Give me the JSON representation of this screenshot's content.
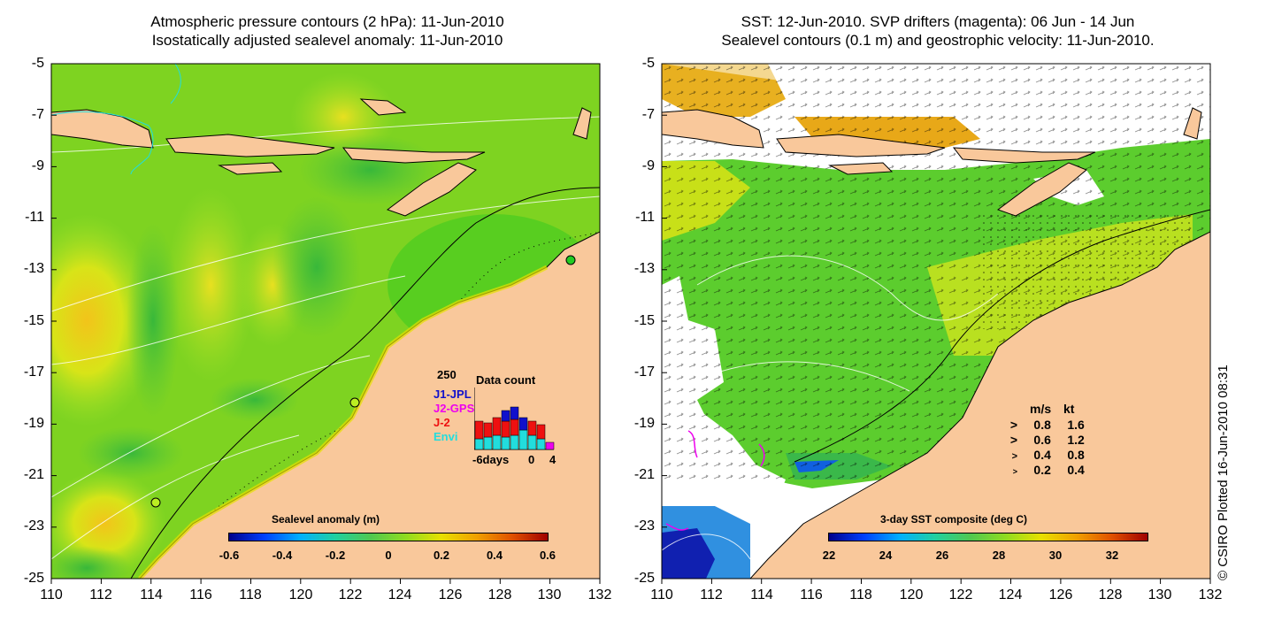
{
  "left": {
    "title_line1": "Atmospheric pressure contours (2 hPa): 11-Jun-2010",
    "title_line2": "Isostatically adjusted sealevel anomaly: 11-Jun-2010",
    "colorbar": {
      "title": "Sealevel anomaly (m)",
      "ticks": [
        "-0.6",
        "-0.4",
        "-0.2",
        "0",
        "0.2",
        "0.4",
        "0.6"
      ]
    },
    "data_count": {
      "title": "Data count",
      "max_label": "250",
      "x_labels": [
        "-6days",
        "0",
        "4"
      ],
      "series": [
        {
          "name": "J1-JPL",
          "color": "#1010cc"
        },
        {
          "name": "J2-GPS",
          "color": "#ee00ee"
        },
        {
          "name": "J-2",
          "color": "#ee1010"
        },
        {
          "name": "Envi",
          "color": "#22dddd"
        }
      ]
    }
  },
  "right": {
    "title_line1": "SST: 12-Jun-2010. SVP drifters (magenta): 06 Jun - 14 Jun",
    "title_line2": "Sealevel contours (0.1 m) and geostrophic velocity: 11-Jun-2010.",
    "colorbar": {
      "title": "3-day SST composite (deg C)",
      "ticks": [
        "22",
        "24",
        "26",
        "28",
        "30",
        "32"
      ]
    },
    "velocity_legend": {
      "header_ms": "m/s",
      "header_kt": "kt",
      "rows": [
        {
          "ms": "0.8",
          "kt": "1.6"
        },
        {
          "ms": "0.6",
          "kt": "1.2"
        },
        {
          "ms": "0.4",
          "kt": "0.8"
        },
        {
          "ms": "0.2",
          "kt": "0.4"
        }
      ]
    }
  },
  "axes": {
    "y_ticks": [
      "-5",
      "-7",
      "-9",
      "-11",
      "-13",
      "-15",
      "-17",
      "-19",
      "-21",
      "-23",
      "-25"
    ],
    "x_ticks": [
      "110",
      "112",
      "114",
      "116",
      "118",
      "120",
      "122",
      "124",
      "126",
      "128",
      "130",
      "132"
    ]
  },
  "credit": "© CSIRO Plotted 16-Jun-2010 08:31",
  "colors": {
    "land": "#f9c89b",
    "sla_green": "#7ed321",
    "sla_yellow": "#e6e000",
    "sst_green": "#5ccd2e",
    "sst_yellowgreen": "#b9e020"
  }
}
